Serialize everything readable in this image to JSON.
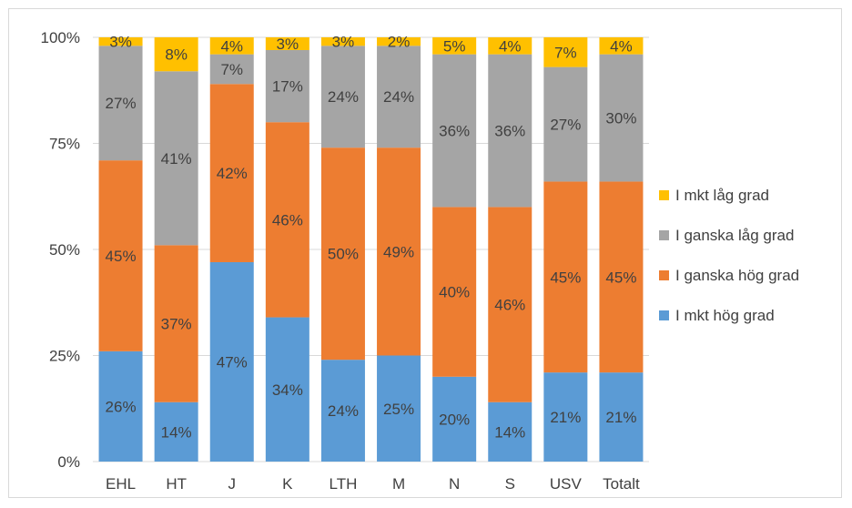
{
  "chart_data": {
    "type": "bar",
    "stacked": true,
    "percent": true,
    "categories": [
      "EHL",
      "HT",
      "J",
      "K",
      "LTH",
      "M",
      "N",
      "S",
      "USV",
      "Totalt"
    ],
    "ylim": [
      0,
      100
    ],
    "yticks": [
      "0%",
      "25%",
      "50%",
      "75%",
      "100%"
    ],
    "ytick_values": [
      0,
      25,
      50,
      75,
      100
    ],
    "grid": true,
    "legend_position": "right",
    "series": [
      {
        "name": "I mkt hög grad",
        "color": "#5B9BD5",
        "values": [
          26,
          14,
          47,
          34,
          24,
          25,
          20,
          14,
          21,
          21
        ],
        "labels": [
          "26%",
          "14%",
          "47%",
          "34%",
          "24%",
          "25%",
          "20%",
          "14%",
          "21%",
          "21%"
        ]
      },
      {
        "name": "I ganska hög grad",
        "color": "#ED7D31",
        "values": [
          45,
          37,
          42,
          46,
          50,
          49,
          40,
          46,
          45,
          45
        ],
        "labels": [
          "45%",
          "37%",
          "42%",
          "46%",
          "50%",
          "49%",
          "40%",
          "46%",
          "45%",
          "45%"
        ]
      },
      {
        "name": "I ganska låg grad",
        "color": "#A5A5A5",
        "values": [
          27,
          41,
          7,
          17,
          24,
          24,
          36,
          36,
          27,
          30
        ],
        "labels": [
          "27%",
          "41%",
          "7%",
          "17%",
          "24%",
          "24%",
          "36%",
          "36%",
          "27%",
          "30%"
        ]
      },
      {
        "name": "I mkt låg grad",
        "color": "#FFC000",
        "values": [
          3,
          8,
          4,
          3,
          3,
          2,
          5,
          4,
          7,
          4
        ],
        "labels": [
          "3%",
          "8%",
          "4%",
          "3%",
          "3%",
          "2%",
          "5%",
          "4%",
          "7%",
          "4%"
        ]
      }
    ],
    "legend_order": [
      "I mkt låg grad",
      "I ganska låg grad",
      "I ganska hög grad",
      "I mkt hög grad"
    ],
    "gridline_color": "#d9d9d9",
    "text_color": "#404040"
  }
}
